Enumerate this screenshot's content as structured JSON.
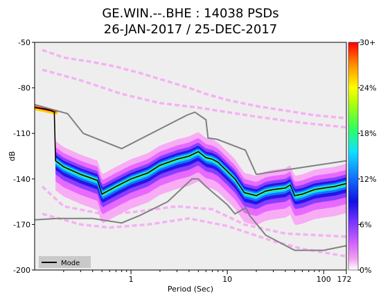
{
  "chart_data": {
    "type": "heatmap",
    "title_line1": "GE.WIN.--.BHE : 14038 PSDs",
    "title_line2": "26-JAN-2017 / 25-DEC-2017",
    "xlabel": "Period (Sec)",
    "ylabel": "dB",
    "x_scale": "log",
    "xlim": [
      0.1,
      172
    ],
    "ylim": [
      -200,
      -50
    ],
    "x_ticks": [
      {
        "value": 1,
        "label": "1"
      },
      {
        "value": 10,
        "label": "10"
      },
      {
        "value": 100,
        "label": "100"
      },
      {
        "value": 172,
        "label": "172"
      }
    ],
    "y_ticks": [
      {
        "value": -50,
        "label": "-50"
      },
      {
        "value": -80,
        "label": "-80"
      },
      {
        "value": -110,
        "label": "-110"
      },
      {
        "value": -140,
        "label": "-140"
      },
      {
        "value": -170,
        "label": "-170"
      },
      {
        "value": -200,
        "label": "-200"
      }
    ],
    "colorbar": {
      "labels": [
        "30+",
        "24%",
        "18%",
        "12%",
        "6%",
        "0%"
      ],
      "min": 0,
      "max": 30,
      "unit": "%"
    },
    "legend": {
      "label": "Mode",
      "position": "bottom-left"
    },
    "background_color": "#eeeeee",
    "mode": {
      "name": "Mode",
      "points": [
        [
          0.1,
          -93
        ],
        [
          0.13,
          -94
        ],
        [
          0.15,
          -95
        ],
        [
          0.16,
          -96
        ],
        [
          0.165,
          -128
        ],
        [
          0.2,
          -132
        ],
        [
          0.3,
          -137
        ],
        [
          0.45,
          -141
        ],
        [
          0.5,
          -150
        ],
        [
          0.7,
          -145
        ],
        [
          1.0,
          -140
        ],
        [
          1.5,
          -136
        ],
        [
          2.0,
          -131
        ],
        [
          3.0,
          -127
        ],
        [
          4.0,
          -125
        ],
        [
          5.0,
          -122
        ],
        [
          6.0,
          -126
        ],
        [
          7.0,
          -127
        ],
        [
          8.0,
          -129
        ],
        [
          10.0,
          -135
        ],
        [
          12.0,
          -140
        ],
        [
          15.0,
          -149
        ],
        [
          20.0,
          -151
        ],
        [
          25.0,
          -148
        ],
        [
          30.0,
          -147
        ],
        [
          40.0,
          -146
        ],
        [
          45.0,
          -144
        ],
        [
          50.0,
          -151
        ],
        [
          60.0,
          -150
        ],
        [
          80.0,
          -147
        ],
        [
          100.0,
          -146
        ],
        [
          130.0,
          -145
        ],
        [
          172.0,
          -143
        ]
      ]
    },
    "new_high_noise_model": {
      "points": [
        [
          0.1,
          -91
        ],
        [
          0.22,
          -97
        ],
        [
          0.32,
          -110
        ],
        [
          0.8,
          -120
        ],
        [
          3.8,
          -98
        ],
        [
          4.6,
          -96
        ],
        [
          6.0,
          -101
        ],
        [
          6.3,
          -113
        ],
        [
          7.9,
          -114
        ],
        [
          15.4,
          -121
        ],
        [
          20.0,
          -137
        ],
        [
          172,
          -128
        ]
      ]
    },
    "new_low_noise_model": {
      "points": [
        [
          0.1,
          -167
        ],
        [
          0.17,
          -166
        ],
        [
          0.4,
          -166
        ],
        [
          0.8,
          -169
        ],
        [
          1.24,
          -164
        ],
        [
          2.4,
          -155
        ],
        [
          4.3,
          -140
        ],
        [
          5.0,
          -140
        ],
        [
          6.0,
          -145
        ],
        [
          10.0,
          -157
        ],
        [
          12.0,
          -163
        ],
        [
          15.6,
          -159
        ],
        [
          17.0,
          -164
        ],
        [
          25,
          -177
        ],
        [
          50,
          -187
        ],
        [
          100,
          -187
        ],
        [
          172,
          -184
        ]
      ]
    },
    "density_bands": [
      {
        "level_pct": 1,
        "color": "#f7a6f5",
        "half_width_db": 13
      },
      {
        "level_pct": 3,
        "color": "#e563ff",
        "half_width_db": 9
      },
      {
        "level_pct": 6,
        "color": "#7f3cff",
        "half_width_db": 6
      },
      {
        "level_pct": 9,
        "color": "#1e10e6",
        "half_width_db": 4
      },
      {
        "level_pct": 12,
        "color": "#0f7dff",
        "half_width_db": 2.5
      },
      {
        "level_pct": 15,
        "color": "#12e0ff",
        "half_width_db": 1.5
      },
      {
        "level_pct": 20,
        "color": "#63ff3a",
        "half_width_db": 0.6
      }
    ],
    "outlier_traces": [
      {
        "color": "#f7a6f5",
        "points": [
          [
            0.12,
            -55
          ],
          [
            0.2,
            -60
          ],
          [
            0.4,
            -63
          ],
          [
            0.7,
            -66
          ],
          [
            1.2,
            -70
          ],
          [
            2.5,
            -76
          ],
          [
            4,
            -80
          ],
          [
            6,
            -84
          ],
          [
            10,
            -88
          ],
          [
            20,
            -92
          ],
          [
            40,
            -95
          ],
          [
            80,
            -98
          ],
          [
            172,
            -100
          ]
        ]
      },
      {
        "color": "#f7a6f5",
        "points": [
          [
            0.12,
            -68
          ],
          [
            0.3,
            -75
          ],
          [
            0.8,
            -84
          ],
          [
            2,
            -90
          ],
          [
            5,
            -93
          ],
          [
            10,
            -96
          ],
          [
            20,
            -99
          ],
          [
            60,
            -103
          ],
          [
            172,
            -106
          ]
        ]
      },
      {
        "color": "#f7a6f5",
        "points": [
          [
            0.12,
            -163
          ],
          [
            0.3,
            -170
          ],
          [
            0.6,
            -172
          ],
          [
            1.5,
            -170
          ],
          [
            4,
            -166
          ],
          [
            10,
            -171
          ],
          [
            30,
            -181
          ],
          [
            60,
            -186
          ],
          [
            172,
            -191
          ]
        ]
      },
      {
        "color": "#f7a6f5",
        "points": [
          [
            0.12,
            -145
          ],
          [
            0.2,
            -158
          ],
          [
            0.5,
            -163
          ],
          [
            1,
            -162
          ],
          [
            3,
            -158
          ],
          [
            7,
            -160
          ],
          [
            15,
            -170
          ],
          [
            40,
            -176
          ],
          [
            172,
            -178
          ]
        ]
      }
    ]
  }
}
